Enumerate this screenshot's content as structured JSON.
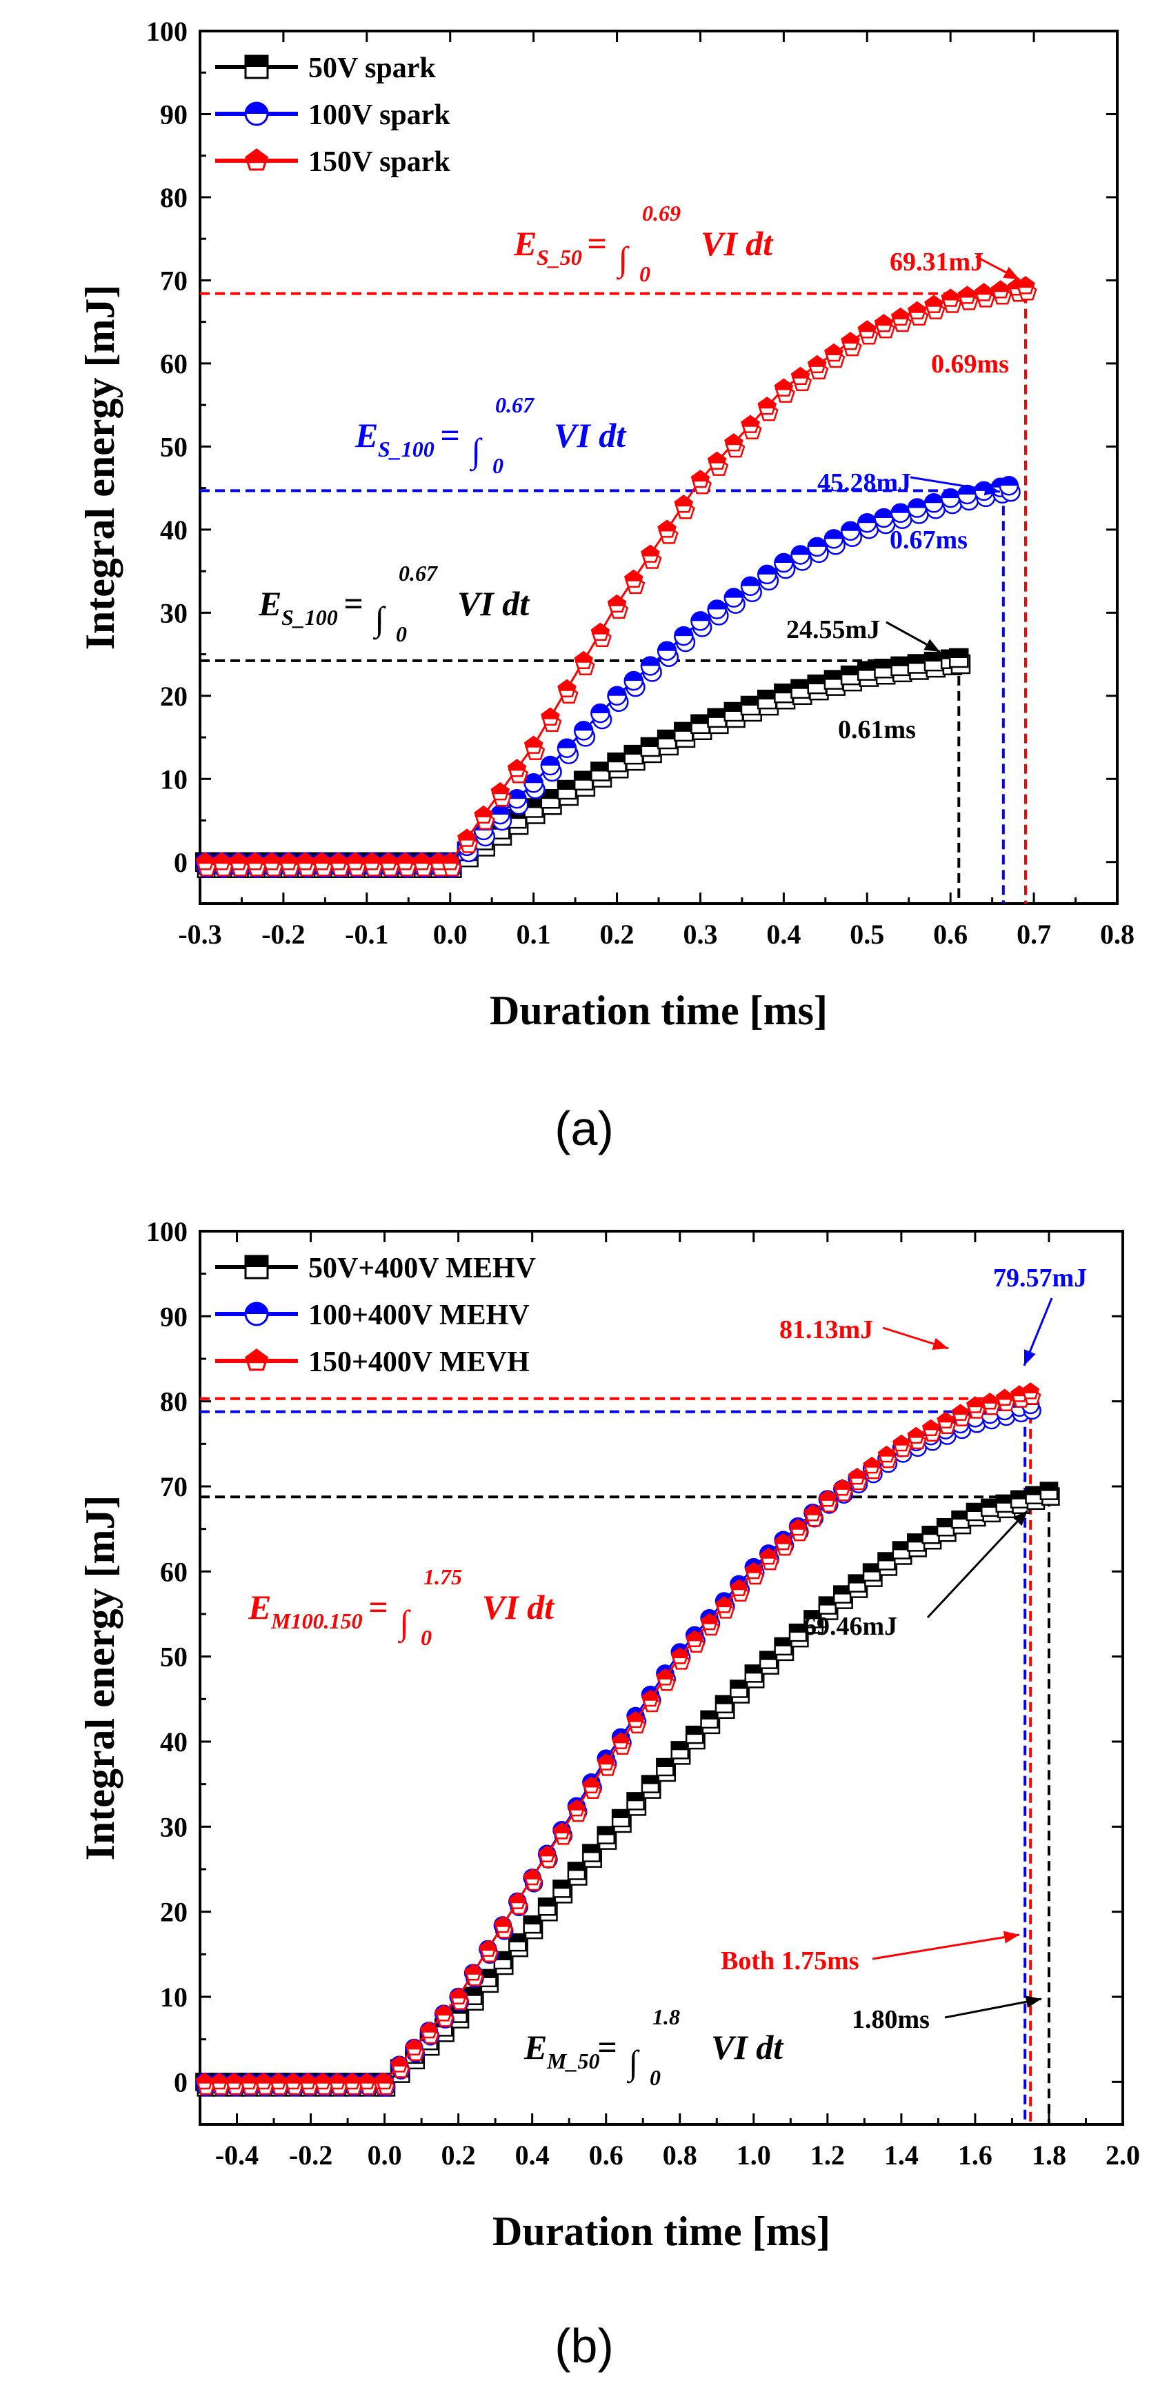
{
  "chart_data": [
    {
      "type": "line",
      "panel_label": "(a)",
      "xlabel": "Duration time [ms]",
      "ylabel": "Integral energy [mJ]",
      "xlim": [
        -0.3,
        0.8
      ],
      "ylim": [
        -5,
        100
      ],
      "x_ticks": [
        "-0.3",
        "-0.2",
        "-0.1",
        "0.0",
        "0.1",
        "0.2",
        "0.3",
        "0.4",
        "0.5",
        "0.6",
        "0.7",
        "0.8"
      ],
      "y_ticks": [
        "0",
        "10",
        "20",
        "30",
        "40",
        "50",
        "60",
        "70",
        "80",
        "90",
        "100"
      ],
      "legend_position": "top-left",
      "series": [
        {
          "name": "50V spark",
          "color": "#000000",
          "marker": "square",
          "end_x": 0.61,
          "end_y": 24.55,
          "start_y": 0,
          "x": [
            0.0,
            0.1,
            0.2,
            0.3,
            0.4,
            0.5,
            0.61
          ],
          "values": [
            0,
            6.5,
            12.0,
            16.6,
            20.3,
            23.0,
            24.55
          ]
        },
        {
          "name": "100V spark",
          "color": "#0000ff",
          "marker": "circle",
          "end_x": 0.67,
          "end_y": 45.28,
          "start_y": 0,
          "x": [
            0.0,
            0.1,
            0.2,
            0.3,
            0.4,
            0.5,
            0.6,
            0.67
          ],
          "values": [
            0,
            9.5,
            20.0,
            29.0,
            36.0,
            40.8,
            43.8,
            45.28
          ]
        },
        {
          "name": "150V spark",
          "color": "#ff0000",
          "marker": "pentagon",
          "end_x": 0.69,
          "end_y": 69.31,
          "start_y": 0,
          "x": [
            0.0,
            0.1,
            0.2,
            0.3,
            0.4,
            0.5,
            0.6,
            0.69
          ],
          "values": [
            0,
            14.0,
            31.0,
            46.0,
            57.0,
            64.0,
            67.8,
            69.31
          ]
        }
      ],
      "annotations": [
        {
          "text": "69.31mJ",
          "color": "#ff0000"
        },
        {
          "text": "0.69ms",
          "color": "#ff0000"
        },
        {
          "text": "45.28mJ",
          "color": "#0000ff"
        },
        {
          "text": "0.67ms",
          "color": "#0000ff"
        },
        {
          "text": "24.55mJ",
          "color": "#000000"
        },
        {
          "text": "0.61ms",
          "color": "#000000"
        }
      ],
      "equations": [
        {
          "E": "E",
          "sub": "S_50",
          "upper": "0.69",
          "lower": "0",
          "integrand": "VI dt",
          "color": "#ff0000"
        },
        {
          "E": "E",
          "sub": "S_100",
          "upper": "0.67",
          "lower": "0",
          "integrand": "VI dt",
          "color": "#0000ff"
        },
        {
          "E": "E",
          "sub": "S_100",
          "upper": "0.67",
          "lower": "0",
          "integrand": "VI dt",
          "color": "#000000"
        }
      ]
    },
    {
      "type": "line",
      "panel_label": "(b)",
      "xlabel": "Duration time [ms]",
      "ylabel": "Integral energy [mJ]",
      "xlim": [
        -0.5,
        2.0
      ],
      "ylim": [
        -5,
        100
      ],
      "x_ticks": [
        "-0.4",
        "-0.2",
        "0.0",
        "0.2",
        "0.4",
        "0.6",
        "0.8",
        "1.0",
        "1.2",
        "1.4",
        "1.6",
        "1.8",
        "2.0"
      ],
      "y_ticks": [
        "0",
        "10",
        "20",
        "30",
        "40",
        "50",
        "60",
        "70",
        "80",
        "90",
        "100"
      ],
      "legend_position": "top-left",
      "series": [
        {
          "name": "50V+400V MEHV",
          "color": "#000000",
          "marker": "square",
          "end_x": 1.8,
          "end_y": 69.46,
          "start_y": 0,
          "x": [
            0.0,
            0.2,
            0.4,
            0.6,
            0.8,
            1.0,
            1.2,
            1.4,
            1.6,
            1.8
          ],
          "values": [
            0,
            8.0,
            18.5,
            29.0,
            39.0,
            48.0,
            56.0,
            62.5,
            67.0,
            69.46
          ]
        },
        {
          "name": "100+400V MEHV",
          "color": "#0000ff",
          "marker": "circle",
          "end_x": 1.75,
          "end_y": 79.57,
          "start_y": 0,
          "x": [
            0.0,
            0.2,
            0.4,
            0.6,
            0.8,
            1.0,
            1.2,
            1.4,
            1.6,
            1.75
          ],
          "values": [
            0,
            10.0,
            24.0,
            38.0,
            50.5,
            60.5,
            68.5,
            74.5,
            78.0,
            79.57
          ]
        },
        {
          "name": "150+400V MEVH",
          "color": "#ff0000",
          "marker": "pentagon",
          "end_x": 1.75,
          "end_y": 81.13,
          "start_y": 0,
          "x": [
            0.0,
            0.2,
            0.4,
            0.6,
            0.8,
            1.0,
            1.2,
            1.4,
            1.6,
            1.75
          ],
          "values": [
            0,
            10.0,
            24.0,
            37.5,
            50.0,
            60.0,
            68.5,
            75.0,
            79.5,
            81.13
          ]
        }
      ],
      "annotations": [
        {
          "text": "79.57mJ",
          "color": "#0000ff"
        },
        {
          "text": "81.13mJ",
          "color": "#ff0000"
        },
        {
          "text": "69.46mJ",
          "color": "#000000"
        },
        {
          "text": "Both 1.75ms",
          "color": "#ff0000"
        },
        {
          "text": "1.80ms",
          "color": "#000000"
        }
      ],
      "equations": [
        {
          "E": "E",
          "sub": "M100.150",
          "upper": "1.75",
          "lower": "0",
          "integrand": "VI dt",
          "color": "#ff0000"
        },
        {
          "E": "E",
          "sub": "M_50",
          "upper": "1.8",
          "lower": "0",
          "integrand": "VI dt",
          "color": "#000000"
        }
      ]
    }
  ]
}
